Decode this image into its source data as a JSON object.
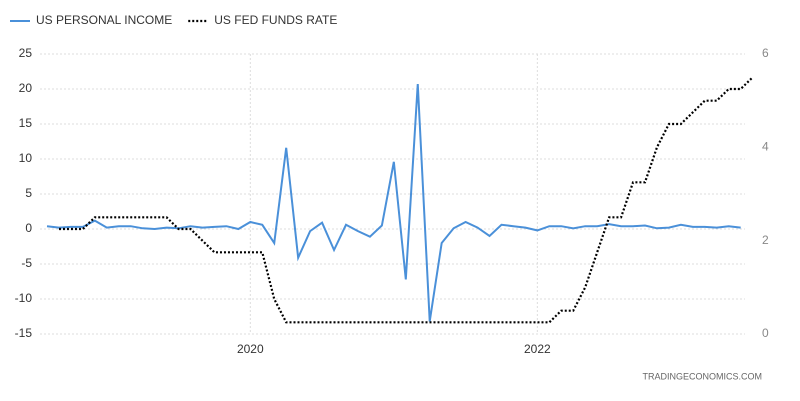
{
  "chart_data": {
    "type": "line",
    "categories": [
      null,
      null,
      null,
      null,
      null,
      null,
      null,
      null,
      null,
      null,
      null,
      null,
      null,
      null,
      null,
      null,
      null,
      "2020",
      null,
      null,
      null,
      null,
      null,
      null,
      null,
      null,
      null,
      null,
      null,
      null,
      null,
      null,
      null,
      null,
      null,
      null,
      null,
      null,
      null,
      null,
      null,
      "2022",
      null,
      null,
      null,
      null,
      null,
      null,
      null,
      null,
      null,
      null,
      null,
      null,
      null,
      null,
      null,
      null,
      null,
      null
    ],
    "series": [
      {
        "name": "US PERSONAL INCOME",
        "color": "#4a90d9",
        "axis": "y",
        "values": [
          0.4,
          0.2,
          0.3,
          0.3,
          1.2,
          0.2,
          0.4,
          0.4,
          0.1,
          0.0,
          0.2,
          0.1,
          0.4,
          0.2,
          0.3,
          0.4,
          0.0,
          1.0,
          0.6,
          -2.0,
          11.6,
          -4.1,
          -0.3,
          0.9,
          -3.0,
          0.6,
          -0.3,
          -1.1,
          0.5,
          9.6,
          -7.2,
          20.7,
          -13.2,
          -2.0,
          0.1,
          1.0,
          0.2,
          -1.0,
          0.6,
          0.4,
          0.2,
          -0.2,
          0.4,
          0.4,
          0.1,
          0.4,
          0.4,
          0.7,
          0.4,
          0.4,
          0.5,
          0.1,
          0.2,
          0.6,
          0.3,
          0.3,
          0.2,
          0.4,
          0.2,
          null
        ]
      },
      {
        "name": "US FED FUNDS RATE",
        "color": "#000000",
        "axis": "y2",
        "dash": "dotted",
        "values": [
          null,
          2.25,
          2.25,
          2.25,
          2.5,
          2.5,
          2.5,
          2.5,
          2.5,
          2.5,
          2.5,
          2.25,
          2.25,
          2.0,
          1.75,
          1.75,
          1.75,
          1.75,
          1.75,
          0.75,
          0.25,
          0.25,
          0.25,
          0.25,
          0.25,
          0.25,
          0.25,
          0.25,
          0.25,
          0.25,
          0.25,
          0.25,
          0.25,
          0.25,
          0.25,
          0.25,
          0.25,
          0.25,
          0.25,
          0.25,
          0.25,
          0.25,
          0.25,
          0.5,
          0.5,
          1.0,
          1.75,
          2.5,
          2.5,
          3.25,
          3.25,
          4.0,
          4.5,
          4.5,
          4.75,
          5.0,
          5.0,
          5.25,
          5.25,
          5.5
        ]
      }
    ],
    "ylim": [
      -15,
      25
    ],
    "yticks": [
      -15,
      -10,
      -5,
      0,
      5,
      10,
      15,
      20,
      25
    ],
    "y2lim": [
      0,
      6
    ],
    "y2ticks": [
      0,
      2,
      4,
      6
    ],
    "grid": true,
    "legend": "top-left",
    "source": "TRADINGECONOMICS.COM"
  }
}
